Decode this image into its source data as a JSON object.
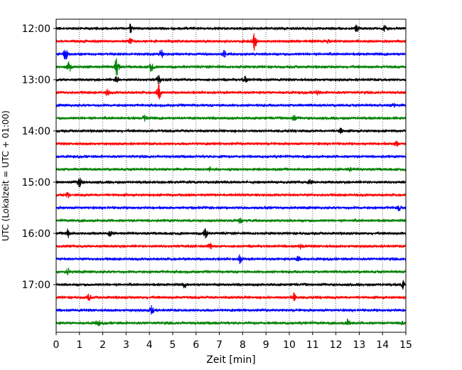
{
  "chart_data": {
    "type": "line",
    "title": "",
    "xlabel": "Zeit  [min]",
    "ylabel": "UTC (Lokalzeit = UTC + 01:00)",
    "xlim": [
      0,
      15
    ],
    "x_ticks": [
      "0",
      "1",
      "2",
      "3",
      "4",
      "5",
      "6",
      "7",
      "8",
      "9",
      "10",
      "11",
      "12",
      "13",
      "14",
      "15"
    ],
    "y_ticks": [
      {
        "label": "12:00",
        "row": 0
      },
      {
        "label": "13:00",
        "row": 4
      },
      {
        "label": "14:00",
        "row": 8
      },
      {
        "label": "15:00",
        "row": 12
      },
      {
        "label": "16:00",
        "row": 16
      },
      {
        "label": "17:00",
        "row": 20
      }
    ],
    "grid": "vertical dotted",
    "trace_colors": [
      "#000000",
      "#ff0000",
      "#0000ff",
      "#008000"
    ],
    "traces": [
      {
        "start": "12:00",
        "events": [
          [
            3.2,
            0.45
          ],
          [
            12.9,
            0.35
          ],
          [
            14.1,
            0.35
          ]
        ]
      },
      {
        "start": "12:15",
        "events": [
          [
            8.5,
            1.0
          ],
          [
            3.2,
            0.3
          ],
          [
            11.7,
            0.25
          ]
        ]
      },
      {
        "start": "12:30",
        "events": [
          [
            0.4,
            0.6
          ],
          [
            4.5,
            0.4
          ],
          [
            7.2,
            0.3
          ]
        ]
      },
      {
        "start": "12:45",
        "events": [
          [
            0.55,
            0.6
          ],
          [
            2.6,
            1.0
          ],
          [
            4.1,
            0.5
          ]
        ]
      },
      {
        "start": "13:00",
        "events": [
          [
            2.6,
            0.35
          ],
          [
            4.4,
            0.4
          ],
          [
            8.1,
            0.45
          ]
        ]
      },
      {
        "start": "13:15",
        "events": [
          [
            2.2,
            0.4
          ],
          [
            4.4,
            0.85
          ],
          [
            11.2,
            0.3
          ]
        ]
      },
      {
        "start": "13:30",
        "events": [
          [
            14.5,
            0.2
          ]
        ]
      },
      {
        "start": "13:45",
        "events": [
          [
            3.8,
            0.3
          ],
          [
            10.2,
            0.25
          ]
        ]
      },
      {
        "start": "14:00",
        "events": [
          [
            12.2,
            0.25
          ]
        ]
      },
      {
        "start": "14:15",
        "events": [
          [
            14.6,
            0.2
          ]
        ]
      },
      {
        "start": "14:30",
        "events": [
          [
            7.1,
            0.15
          ]
        ]
      },
      {
        "start": "14:45",
        "events": [
          [
            6.6,
            0.25
          ],
          [
            12.6,
            0.2
          ]
        ]
      },
      {
        "start": "15:00",
        "events": [
          [
            1.0,
            0.45
          ],
          [
            10.9,
            0.35
          ]
        ]
      },
      {
        "start": "15:15",
        "events": [
          [
            0.5,
            0.2
          ]
        ]
      },
      {
        "start": "15:30",
        "events": [
          [
            14.7,
            0.25
          ]
        ]
      },
      {
        "start": "15:45",
        "events": [
          [
            7.9,
            0.25
          ]
        ]
      },
      {
        "start": "16:00",
        "events": [
          [
            0.5,
            0.45
          ],
          [
            2.3,
            0.35
          ],
          [
            6.4,
            0.45
          ]
        ]
      },
      {
        "start": "16:15",
        "events": [
          [
            6.6,
            0.3
          ],
          [
            10.5,
            0.3
          ]
        ]
      },
      {
        "start": "16:30",
        "events": [
          [
            7.9,
            0.4
          ],
          [
            10.4,
            0.25
          ]
        ]
      },
      {
        "start": "16:45",
        "events": [
          [
            0.5,
            0.35
          ]
        ]
      },
      {
        "start": "17:00",
        "events": [
          [
            5.5,
            0.3
          ],
          [
            14.85,
            0.45
          ]
        ]
      },
      {
        "start": "17:15",
        "events": [
          [
            1.4,
            0.35
          ],
          [
            10.2,
            0.4
          ]
        ]
      },
      {
        "start": "17:30",
        "events": [
          [
            4.1,
            0.45
          ]
        ]
      },
      {
        "start": "17:45",
        "events": [
          [
            1.8,
            0.35
          ],
          [
            12.5,
            0.5
          ],
          [
            14.9,
            0.3
          ]
        ]
      }
    ]
  }
}
